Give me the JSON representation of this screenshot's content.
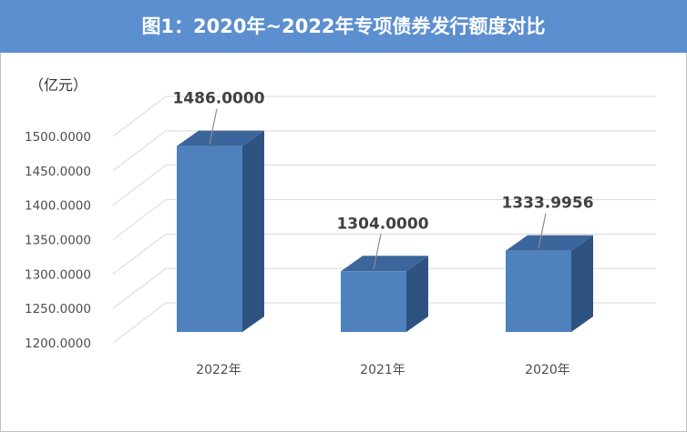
{
  "title": "图1：2020年~2022年专项债券发行额度对比",
  "chart_data": {
    "type": "bar",
    "title": "图1：2020年~2022年专项债券发行额度对比",
    "unit_label": "（亿元）",
    "xlabel": "",
    "ylabel": "",
    "categories": [
      "2022年",
      "2021年",
      "2020年"
    ],
    "values": [
      1486.0,
      1304.0,
      1333.9956
    ],
    "value_labels": [
      "1486.0000",
      "1304.0000",
      "1333.9956"
    ],
    "ylim": [
      1200,
      1500
    ],
    "yticks": [
      1200,
      1250,
      1300,
      1350,
      1400,
      1450,
      1500
    ],
    "ytick_labels": [
      "1200.0000",
      "1250.0000",
      "1300.0000",
      "1350.0000",
      "1400.0000",
      "1450.0000",
      "1500.0000"
    ],
    "grid": true,
    "style": "3d-column",
    "colors": {
      "front": "#4f81bd",
      "side": "#2f5381",
      "top": "#3c669b",
      "grid": "#d9d9d9",
      "title_bar": "#5b8fd0"
    }
  }
}
